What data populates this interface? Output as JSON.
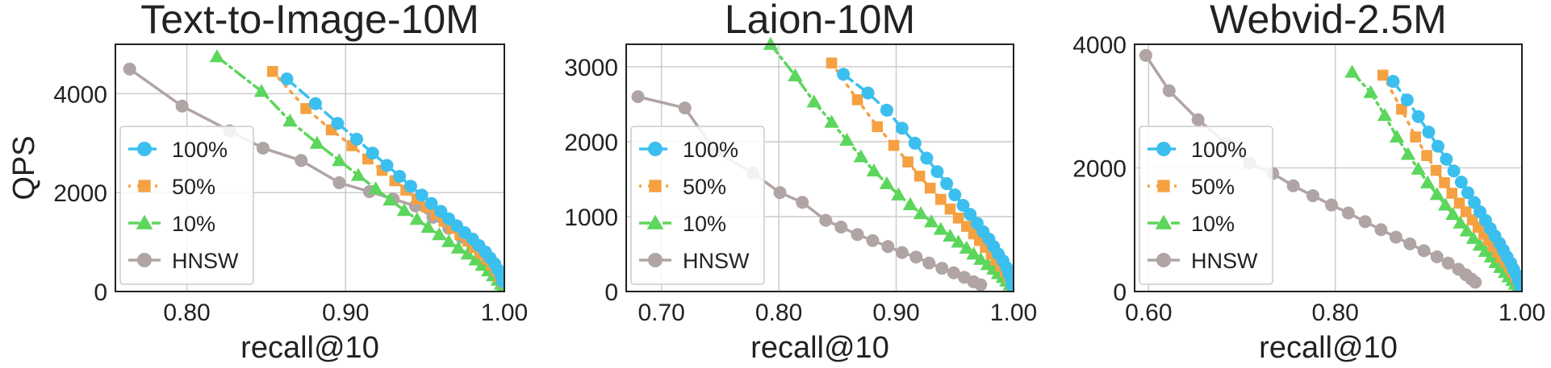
{
  "ylabel": "QPS",
  "chart_data": [
    {
      "type": "line",
      "title": "Text-to-Image-10M",
      "xlabel": "recall@10",
      "ylabel": "QPS",
      "xlim": [
        0.755,
        1.0
      ],
      "ylim": [
        0,
        5000
      ],
      "xticks": [
        "0.80",
        "0.90",
        "1.00"
      ],
      "yticks": [
        "0",
        "2000",
        "4000"
      ],
      "grid": true,
      "legend_position": "left",
      "series": [
        {
          "name": "100%",
          "color": "#3bbfef",
          "marker": "circle",
          "line_style": "dashed",
          "x": [
            0.863,
            0.881,
            0.895,
            0.907,
            0.917,
            0.926,
            0.934,
            0.941,
            0.948,
            0.954,
            0.96,
            0.965,
            0.97,
            0.975,
            0.98,
            0.984,
            0.988,
            0.991,
            0.994,
            0.996,
            0.998,
            0.999
          ],
          "y": [
            4300,
            3800,
            3400,
            3080,
            2800,
            2550,
            2330,
            2130,
            1950,
            1780,
            1620,
            1470,
            1330,
            1190,
            1060,
            930,
            800,
            680,
            560,
            440,
            320,
            200
          ]
        },
        {
          "name": "50%",
          "color": "#f5a142",
          "marker": "square",
          "line_style": "dotted",
          "x": [
            0.854,
            0.875,
            0.891,
            0.904,
            0.914,
            0.923,
            0.931,
            0.938,
            0.945,
            0.951,
            0.957,
            0.962,
            0.967,
            0.972,
            0.977,
            0.981,
            0.985,
            0.989,
            0.992,
            0.995,
            0.997,
            0.999
          ],
          "y": [
            4450,
            3700,
            3270,
            2950,
            2680,
            2450,
            2240,
            2050,
            1870,
            1710,
            1560,
            1420,
            1280,
            1150,
            1020,
            890,
            770,
            650,
            530,
            420,
            300,
            180
          ]
        },
        {
          "name": "10%",
          "color": "#5cd65c",
          "marker": "triangle",
          "line_style": "dashdot",
          "x": [
            0.819,
            0.847,
            0.865,
            0.882,
            0.896,
            0.908,
            0.919,
            0.928,
            0.937,
            0.945,
            0.952,
            0.959,
            0.965,
            0.971,
            0.977,
            0.982,
            0.986,
            0.99,
            0.993,
            0.996,
            0.998,
            0.999
          ],
          "y": [
            4750,
            4050,
            3450,
            3000,
            2650,
            2350,
            2080,
            1850,
            1640,
            1460,
            1300,
            1150,
            1010,
            880,
            760,
            640,
            530,
            420,
            320,
            230,
            150,
            80
          ]
        },
        {
          "name": "HNSW",
          "color": "#b0a4a4",
          "marker": "circle",
          "line_style": "solid",
          "x": [
            0.764,
            0.797,
            0.827,
            0.848,
            0.872,
            0.896,
            0.915,
            0.93,
            0.944,
            0.955,
            0.965,
            0.973,
            0.98,
            0.985,
            0.989,
            0.992,
            0.995,
            0.997,
            0.998,
            0.999
          ],
          "y": [
            4500,
            3750,
            3250,
            2900,
            2650,
            2200,
            2020,
            1870,
            1730,
            1500,
            1280,
            1100,
            940,
            790,
            650,
            520,
            400,
            290,
            190,
            110
          ]
        }
      ]
    },
    {
      "type": "line",
      "title": "Laion-10M",
      "xlabel": "recall@10",
      "ylabel": "",
      "xlim": [
        0.67,
        1.0
      ],
      "ylim": [
        0,
        3300
      ],
      "xticks": [
        "0.70",
        "0.80",
        "0.90",
        "1.00"
      ],
      "yticks": [
        "0",
        "1000",
        "2000",
        "3000"
      ],
      "grid": true,
      "legend_position": "left",
      "series": [
        {
          "name": "100%",
          "color": "#3bbfef",
          "marker": "circle",
          "line_style": "dashed",
          "x": [
            0.855,
            0.876,
            0.892,
            0.905,
            0.916,
            0.926,
            0.935,
            0.943,
            0.95,
            0.957,
            0.963,
            0.969,
            0.974,
            0.979,
            0.983,
            0.987,
            0.991,
            0.994,
            0.996,
            0.998,
            0.999
          ],
          "y": [
            2900,
            2650,
            2420,
            2180,
            1980,
            1780,
            1600,
            1440,
            1290,
            1150,
            1030,
            910,
            800,
            700,
            600,
            500,
            410,
            320,
            240,
            160,
            80
          ]
        },
        {
          "name": "50%",
          "color": "#f5a142",
          "marker": "square",
          "line_style": "dotted",
          "x": [
            0.845,
            0.867,
            0.884,
            0.898,
            0.91,
            0.92,
            0.929,
            0.938,
            0.946,
            0.953,
            0.96,
            0.966,
            0.971,
            0.976,
            0.981,
            0.985,
            0.989,
            0.993,
            0.996,
            0.998,
            0.999
          ],
          "y": [
            3050,
            2560,
            2200,
            1950,
            1730,
            1540,
            1380,
            1230,
            1100,
            980,
            870,
            770,
            680,
            590,
            500,
            420,
            340,
            260,
            190,
            120,
            60
          ]
        },
        {
          "name": "10%",
          "color": "#5cd65c",
          "marker": "triangle",
          "line_style": "dashdot",
          "x": [
            0.793,
            0.814,
            0.83,
            0.845,
            0.858,
            0.87,
            0.881,
            0.892,
            0.902,
            0.912,
            0.921,
            0.93,
            0.938,
            0.946,
            0.953,
            0.96,
            0.966,
            0.972,
            0.978,
            0.983,
            0.987,
            0.991,
            0.994,
            0.997,
            0.999
          ],
          "y": [
            3300,
            2880,
            2530,
            2260,
            2020,
            1800,
            1610,
            1440,
            1290,
            1160,
            1040,
            930,
            830,
            740,
            660,
            580,
            500,
            430,
            360,
            300,
            240,
            190,
            140,
            90,
            50
          ]
        },
        {
          "name": "HNSW",
          "color": "#b0a4a4",
          "marker": "circle",
          "line_style": "solid",
          "x": [
            0.68,
            0.72,
            0.746,
            0.778,
            0.801,
            0.82,
            0.84,
            0.853,
            0.867,
            0.88,
            0.893,
            0.905,
            0.917,
            0.928,
            0.939,
            0.949,
            0.958,
            0.966,
            0.972
          ],
          "y": [
            2600,
            2450,
            1870,
            1580,
            1320,
            1190,
            950,
            860,
            760,
            680,
            600,
            520,
            460,
            380,
            310,
            250,
            190,
            130,
            90
          ]
        }
      ]
    },
    {
      "type": "line",
      "title": "Webvid-2.5M",
      "xlabel": "recall@10",
      "ylabel": "",
      "xlim": [
        0.585,
        1.0
      ],
      "ylim": [
        0,
        4000
      ],
      "xticks": [
        "0.60",
        "0.80",
        "1.00"
      ],
      "yticks": [
        "0",
        "2000",
        "4000"
      ],
      "grid": true,
      "legend_position": "left",
      "series": [
        {
          "name": "100%",
          "color": "#3bbfef",
          "marker": "circle",
          "line_style": "dashed",
          "x": [
            0.862,
            0.877,
            0.889,
            0.9,
            0.91,
            0.919,
            0.927,
            0.935,
            0.942,
            0.949,
            0.955,
            0.961,
            0.966,
            0.971,
            0.976,
            0.98,
            0.984,
            0.988,
            0.991,
            0.994,
            0.996,
            0.998,
            0.999
          ],
          "y": [
            3400,
            3100,
            2830,
            2580,
            2350,
            2140,
            1950,
            1770,
            1600,
            1440,
            1290,
            1150,
            1020,
            900,
            780,
            670,
            560,
            460,
            360,
            270,
            190,
            110,
            50
          ]
        },
        {
          "name": "50%",
          "color": "#f5a142",
          "marker": "square",
          "line_style": "dotted",
          "x": [
            0.851,
            0.871,
            0.886,
            0.898,
            0.908,
            0.917,
            0.925,
            0.933,
            0.94,
            0.947,
            0.953,
            0.959,
            0.964,
            0.969,
            0.974,
            0.978,
            0.983,
            0.987,
            0.99,
            0.993,
            0.996,
            0.998,
            0.999
          ],
          "y": [
            3500,
            2950,
            2500,
            2200,
            1960,
            1760,
            1590,
            1430,
            1290,
            1160,
            1040,
            930,
            830,
            730,
            640,
            550,
            470,
            390,
            310,
            240,
            170,
            100,
            40
          ]
        },
        {
          "name": "10%",
          "color": "#5cd65c",
          "marker": "triangle",
          "line_style": "dashdot",
          "x": [
            0.818,
            0.838,
            0.853,
            0.866,
            0.878,
            0.889,
            0.899,
            0.909,
            0.918,
            0.926,
            0.934,
            0.941,
            0.948,
            0.955,
            0.961,
            0.967,
            0.972,
            0.977,
            0.982,
            0.986,
            0.99,
            0.993,
            0.996,
            0.998,
            0.999
          ],
          "y": [
            3550,
            3220,
            2850,
            2500,
            2220,
            1980,
            1760,
            1570,
            1400,
            1250,
            1110,
            980,
            860,
            750,
            650,
            560,
            470,
            390,
            310,
            240,
            180,
            120,
            70,
            30,
            10
          ]
        },
        {
          "name": "HNSW",
          "color": "#b0a4a4",
          "marker": "circle",
          "line_style": "solid",
          "x": [
            0.597,
            0.622,
            0.653,
            0.683,
            0.708,
            0.733,
            0.755,
            0.776,
            0.796,
            0.814,
            0.832,
            0.849,
            0.865,
            0.88,
            0.895,
            0.909,
            0.921,
            0.932,
            0.94,
            0.946,
            0.95
          ],
          "y": [
            3820,
            3250,
            2780,
            2400,
            2080,
            1910,
            1710,
            1550,
            1400,
            1270,
            1130,
            1000,
            880,
            770,
            660,
            560,
            460,
            360,
            270,
            200,
            150
          ]
        }
      ]
    }
  ]
}
